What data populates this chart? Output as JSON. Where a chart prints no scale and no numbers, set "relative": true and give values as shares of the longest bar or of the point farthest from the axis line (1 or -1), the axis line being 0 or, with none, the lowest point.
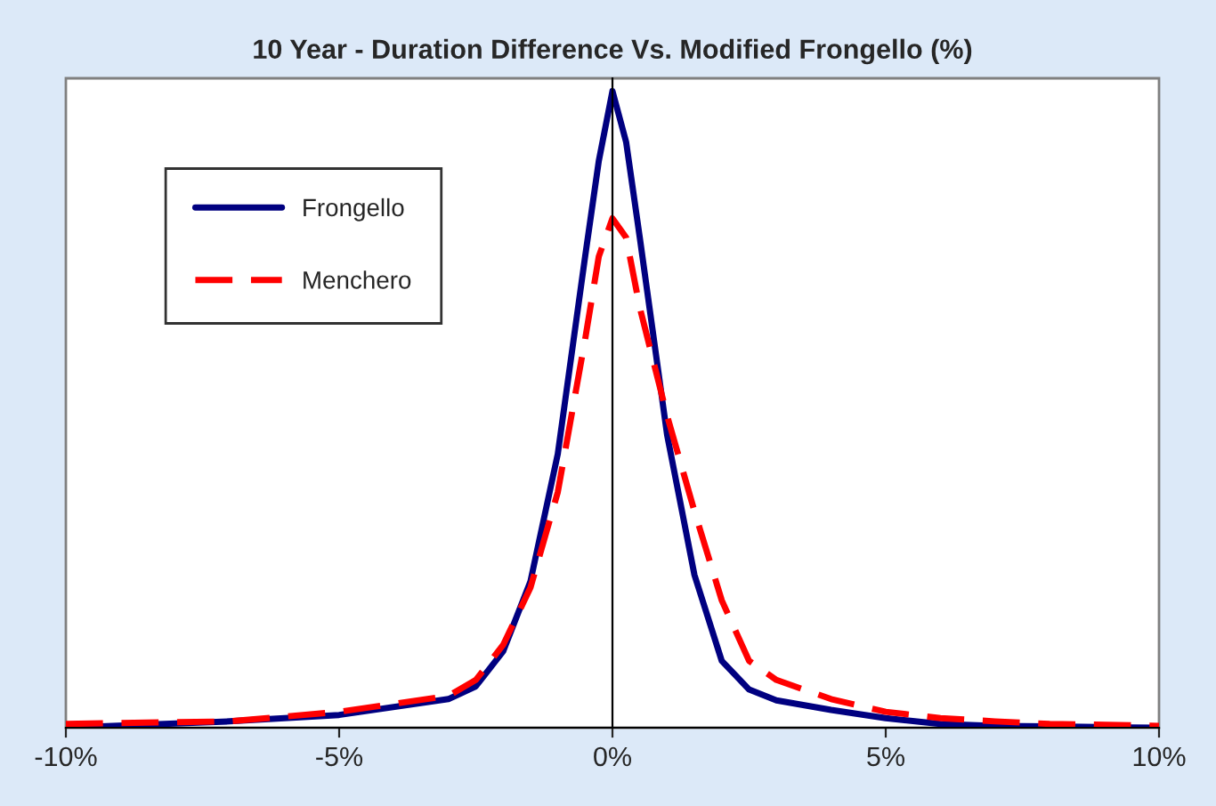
{
  "chart_data": {
    "type": "line",
    "title": "10 Year - Duration Difference Vs. Modified Frongello (%)",
    "relative": true,
    "x": [
      -10,
      -7,
      -5,
      -3,
      -2.5,
      -2,
      -1.5,
      -1,
      -0.5,
      -0.25,
      0,
      0.25,
      0.5,
      1,
      1.5,
      2,
      2.5,
      3,
      4,
      5,
      6,
      7,
      8,
      10
    ],
    "series": [
      {
        "name": "Frongello",
        "color": "#000080",
        "line_style": "solid",
        "values": [
          0,
          0.01,
          0.02,
          0.045,
          0.065,
          0.12,
          0.23,
          0.43,
          0.74,
          0.89,
          1,
          0.92,
          0.77,
          0.46,
          0.24,
          0.105,
          0.06,
          0.043,
          0.028,
          0.015,
          0.006,
          0.003,
          0.002,
          0
        ]
      },
      {
        "name": "Menchero",
        "color": "#ff0000",
        "line_style": "dashed",
        "values": [
          0.006,
          0.01,
          0.025,
          0.05,
          0.075,
          0.13,
          0.22,
          0.37,
          0.61,
          0.74,
          0.8,
          0.77,
          0.66,
          0.49,
          0.34,
          0.2,
          0.105,
          0.075,
          0.045,
          0.025,
          0.015,
          0.01,
          0.006,
          0.003
        ]
      }
    ],
    "xlim": [
      -10,
      10
    ],
    "xticks": [
      {
        "value": -10,
        "label": "-10%"
      },
      {
        "value": -5,
        "label": "-5%"
      },
      {
        "value": 0,
        "label": "0%"
      },
      {
        "value": 5,
        "label": "5%"
      },
      {
        "value": 10,
        "label": "10%"
      }
    ],
    "legend": "top left",
    "marker": "none"
  }
}
